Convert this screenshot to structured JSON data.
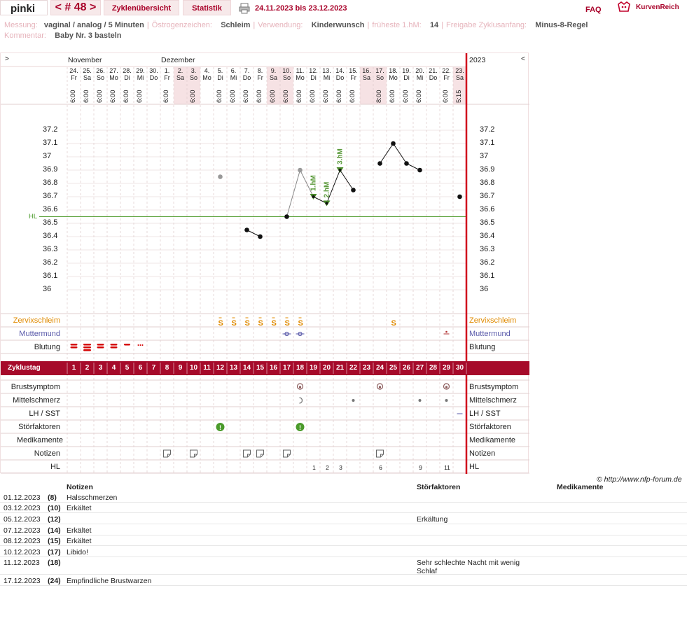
{
  "topbar": {
    "user": "pinki",
    "cycle": "< # 48 >",
    "tab_overview": "Zyklenübersicht",
    "tab_stats": "Statistik",
    "date_range": "24.11.2023 bis 23.12.2023",
    "faq": "FAQ",
    "logo": "KurvenReich"
  },
  "meta": {
    "messung_label": "Messung:",
    "messung_value": "vaginal / analog / 5 Minuten",
    "oestrogen_label": "Östrogenzeichen:",
    "oestrogen_value": "Schleim",
    "verwendung_label": "Verwendung:",
    "verwendung_value": "Kinderwunsch",
    "frueheste_label": "früheste 1.hM:",
    "frueheste_value": "14",
    "freigabe_label": "Freigabe Zyklusanfang:",
    "freigabe_value": "Minus-8-Regel",
    "kommentar_label": "Kommentar:",
    "kommentar_value": "Baby Nr. 3 basteln"
  },
  "chart_header": {
    "left_arrow": ">",
    "right_arrow": "<",
    "month1": "November",
    "month2": "Dezember",
    "year": "2023",
    "hl_label": "HL"
  },
  "days": [
    {
      "d": "24.",
      "w": "Fr",
      "t": "6:00",
      "we": false
    },
    {
      "d": "25.",
      "w": "Sa",
      "t": "6:00",
      "we": false
    },
    {
      "d": "26.",
      "w": "So",
      "t": "6:00",
      "we": false
    },
    {
      "d": "27.",
      "w": "Mo",
      "t": "6:00",
      "we": false
    },
    {
      "d": "28.",
      "w": "Di",
      "t": "6:00",
      "we": false
    },
    {
      "d": "29.",
      "w": "Mi",
      "t": "6:00",
      "we": false
    },
    {
      "d": "30.",
      "w": "Do",
      "t": "",
      "we": false
    },
    {
      "d": "1.",
      "w": "Fr",
      "t": "6:00",
      "we": false
    },
    {
      "d": "2.",
      "w": "Sa",
      "t": "",
      "we": true
    },
    {
      "d": "3.",
      "w": "So",
      "t": "6:00",
      "we": true
    },
    {
      "d": "4.",
      "w": "Mo",
      "t": "",
      "we": false
    },
    {
      "d": "5.",
      "w": "Di",
      "t": "6:00",
      "we": false
    },
    {
      "d": "6.",
      "w": "Mi",
      "t": "6:00",
      "we": false
    },
    {
      "d": "7.",
      "w": "Do",
      "t": "6:00",
      "we": false
    },
    {
      "d": "8.",
      "w": "Fr",
      "t": "6:00",
      "we": false
    },
    {
      "d": "9.",
      "w": "Sa",
      "t": "6:00",
      "we": true
    },
    {
      "d": "10.",
      "w": "So",
      "t": "6:00",
      "we": true
    },
    {
      "d": "11.",
      "w": "Mo",
      "t": "6:00",
      "we": false
    },
    {
      "d": "12.",
      "w": "Di",
      "t": "6:00",
      "we": false
    },
    {
      "d": "13.",
      "w": "Mi",
      "t": "6:00",
      "we": false
    },
    {
      "d": "14.",
      "w": "Do",
      "t": "6:00",
      "we": false
    },
    {
      "d": "15.",
      "w": "Fr",
      "t": "6:00",
      "we": false
    },
    {
      "d": "16.",
      "w": "Sa",
      "t": "",
      "we": true
    },
    {
      "d": "17.",
      "w": "So",
      "t": "8:00",
      "we": true
    },
    {
      "d": "18.",
      "w": "Mo",
      "t": "6:00",
      "we": false
    },
    {
      "d": "19.",
      "w": "Di",
      "t": "6:00",
      "we": false
    },
    {
      "d": "20.",
      "w": "Mi",
      "t": "6:00",
      "we": false
    },
    {
      "d": "21.",
      "w": "Do",
      "t": "",
      "we": false
    },
    {
      "d": "22.",
      "w": "Fr",
      "t": "6:00",
      "we": false
    },
    {
      "d": "23.",
      "w": "Sa",
      "t": "5:15",
      "we": true
    }
  ],
  "chart_data": {
    "type": "line",
    "ylabel": "",
    "ylim": [
      35.95,
      37.25
    ],
    "yticks": [
      "37.2",
      "37.1",
      "37",
      "36.9",
      "36.8",
      "36.7",
      "36.6",
      "36.5",
      "36.4",
      "36.3",
      "36.2",
      "36.1",
      "36"
    ],
    "hl_value": 36.55,
    "points": [
      {
        "day": 12,
        "temp": 36.85,
        "excluded": true
      },
      {
        "day": 14,
        "temp": 36.45,
        "excluded": false
      },
      {
        "day": 15,
        "temp": 36.4,
        "excluded": false
      },
      {
        "day": 17,
        "temp": 36.55,
        "excluded": false
      },
      {
        "day": 18,
        "temp": 36.9,
        "excluded": true
      },
      {
        "day": 19,
        "temp": 36.7,
        "excluded": false
      },
      {
        "day": 20,
        "temp": 36.65,
        "excluded": false
      },
      {
        "day": 21,
        "temp": 36.9,
        "excluded": false
      },
      {
        "day": 22,
        "temp": 36.75,
        "excluded": false
      },
      {
        "day": 24,
        "temp": 36.95,
        "excluded": false
      },
      {
        "day": 25,
        "temp": 37.1,
        "excluded": false
      },
      {
        "day": 26,
        "temp": 36.95,
        "excluded": false
      },
      {
        "day": 27,
        "temp": 36.9,
        "excluded": false
      },
      {
        "day": 30,
        "temp": 36.7,
        "excluded": false
      }
    ],
    "hm_labels": [
      {
        "day": 19,
        "temp": 36.7,
        "text": "1.hM"
      },
      {
        "day": 20,
        "temp": 36.65,
        "text": "2.hM"
      },
      {
        "day": 21,
        "temp": 36.9,
        "text": "3.hM"
      }
    ]
  },
  "rows": {
    "zervix": "Zervixschleim",
    "muttermund": "Muttermund",
    "blutung": "Blutung",
    "zyklustag": "Zyklustag",
    "brust": "Brustsymptom",
    "mittel": "Mittelschmerz",
    "lh": "LH / SST",
    "stoer": "Störfaktoren",
    "medi": "Medikamente",
    "notizen": "Notizen",
    "hl": "HL"
  },
  "hl_numbers": [
    {
      "day": 19,
      "n": "1"
    },
    {
      "day": 20,
      "n": "2"
    },
    {
      "day": 21,
      "n": "3"
    },
    {
      "day": 24,
      "n": "6"
    },
    {
      "day": 27,
      "n": "9"
    },
    {
      "day": 29,
      "n": "11"
    }
  ],
  "copyright": "© http://www.nfp-forum.de",
  "notes_table": {
    "h_notizen": "Notizen",
    "h_stoer": "Störfaktoren",
    "h_medi": "Medikamente",
    "rows": [
      {
        "date": "01.12.2023",
        "day": "(8)",
        "note": "Halsschmerzen",
        "stoer": ""
      },
      {
        "date": "03.12.2023",
        "day": "(10)",
        "note": "Erkältet",
        "stoer": ""
      },
      {
        "date": "05.12.2023",
        "day": "(12)",
        "note": "",
        "stoer": "Erkältung"
      },
      {
        "date": "07.12.2023",
        "day": "(14)",
        "note": "Erkältet",
        "stoer": ""
      },
      {
        "date": "08.12.2023",
        "day": "(15)",
        "note": "Erkältet",
        "stoer": ""
      },
      {
        "date": "10.12.2023",
        "day": "(17)",
        "note": "Libido!",
        "stoer": ""
      },
      {
        "date": "11.12.2023",
        "day": "(18)",
        "note": "",
        "stoer": "Sehr schlechte Nacht mit wenig Schlaf"
      },
      {
        "date": "17.12.2023",
        "day": "(24)",
        "note": "Empfindliche Brustwarzen",
        "stoer": ""
      }
    ]
  },
  "colors": {
    "brand": "#a80028",
    "hl_line": "#4a9a2a",
    "zervix": "#e08a00",
    "muttermund": "#5a5aaa",
    "blood": "#d40000"
  }
}
